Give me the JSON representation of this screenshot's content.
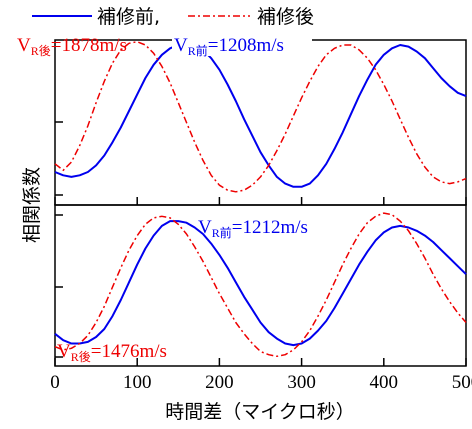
{
  "chart_data": {
    "type": "line",
    "xlabel": "時間差（マイクロ秒）",
    "ylabel": "相関係数",
    "xlim": [
      0,
      500
    ],
    "x_ticks": [
      "0",
      "100",
      "200",
      "300",
      "400",
      "500"
    ],
    "legend": {
      "placement": "top",
      "entries": [
        {
          "name": "補修前,",
          "color": "#0000ee",
          "dash": "solid"
        },
        {
          "name": "補修後",
          "color": "#ee0000",
          "dash": "dashdot"
        }
      ]
    },
    "panels": [
      {
        "annotations": [
          {
            "prefix": "V",
            "sub": "R後",
            "value": "=1878m/s",
            "color": "#ee0000"
          },
          {
            "prefix": "V",
            "sub": "R前",
            "value": "=1208m/s",
            "color": "#0000ee"
          }
        ],
        "ylim": [
          0,
          1
        ],
        "series": [
          {
            "name": "補修前,",
            "color": "#0000ee",
            "dash": "solid",
            "x": [
              0,
              10,
              20,
              30,
              40,
              50,
              60,
              70,
              80,
              90,
              100,
              110,
              120,
              130,
              140,
              150,
              160,
              170,
              180,
              190,
              200,
              210,
              220,
              230,
              240,
              250,
              260,
              270,
              280,
              290,
              300,
              310,
              320,
              330,
              340,
              350,
              360,
              370,
              380,
              390,
              400,
              410,
              420,
              430,
              440,
              450,
              460,
              470,
              480,
              490,
              500
            ],
            "y": [
              0.2,
              0.18,
              0.17,
              0.18,
              0.2,
              0.24,
              0.3,
              0.38,
              0.47,
              0.57,
              0.67,
              0.77,
              0.85,
              0.91,
              0.95,
              0.97,
              0.98,
              0.97,
              0.94,
              0.89,
              0.82,
              0.73,
              0.63,
              0.52,
              0.42,
              0.32,
              0.24,
              0.17,
              0.13,
              0.11,
              0.11,
              0.13,
              0.18,
              0.25,
              0.34,
              0.44,
              0.55,
              0.66,
              0.76,
              0.85,
              0.91,
              0.95,
              0.97,
              0.96,
              0.93,
              0.89,
              0.83,
              0.77,
              0.72,
              0.68,
              0.66
            ]
          },
          {
            "name": "補修後",
            "color": "#ee0000",
            "dash": "dashdot",
            "x": [
              0,
              10,
              20,
              30,
              40,
              50,
              60,
              70,
              80,
              90,
              100,
              110,
              120,
              130,
              140,
              150,
              160,
              170,
              180,
              190,
              200,
              210,
              220,
              230,
              240,
              250,
              260,
              270,
              280,
              290,
              300,
              310,
              320,
              330,
              340,
              350,
              360,
              370,
              380,
              390,
              400,
              410,
              420,
              430,
              440,
              450,
              460,
              470,
              480,
              490,
              500
            ],
            "y": [
              0.25,
              0.21,
              0.26,
              0.36,
              0.48,
              0.62,
              0.75,
              0.86,
              0.94,
              0.98,
              0.99,
              0.97,
              0.92,
              0.84,
              0.74,
              0.62,
              0.5,
              0.38,
              0.27,
              0.18,
              0.12,
              0.09,
              0.08,
              0.09,
              0.12,
              0.17,
              0.24,
              0.33,
              0.43,
              0.54,
              0.65,
              0.75,
              0.84,
              0.91,
              0.95,
              0.97,
              0.97,
              0.94,
              0.89,
              0.82,
              0.73,
              0.63,
              0.52,
              0.41,
              0.31,
              0.23,
              0.17,
              0.14,
              0.13,
              0.14,
              0.16
            ]
          }
        ]
      },
      {
        "annotations": [
          {
            "prefix": "V",
            "sub": "R前",
            "value": "=1212m/s",
            "color": "#0000ee"
          },
          {
            "prefix": "V",
            "sub": "R後",
            "value": "=1476m/s",
            "color": "#ee0000"
          }
        ],
        "ylim": [
          0,
          1
        ],
        "series": [
          {
            "name": "補修前,",
            "color": "#0000ee",
            "dash": "solid",
            "x": [
              0,
              10,
              20,
              30,
              40,
              50,
              60,
              70,
              80,
              90,
              100,
              110,
              120,
              130,
              140,
              150,
              160,
              170,
              180,
              190,
              200,
              210,
              220,
              230,
              240,
              250,
              260,
              270,
              280,
              290,
              300,
              310,
              320,
              330,
              340,
              350,
              360,
              370,
              380,
              390,
              400,
              410,
              420,
              430,
              440,
              450,
              460,
              470,
              480,
              490,
              500
            ],
            "y": [
              0.2,
              0.16,
              0.14,
              0.14,
              0.15,
              0.18,
              0.23,
              0.31,
              0.41,
              0.52,
              0.63,
              0.73,
              0.81,
              0.87,
              0.9,
              0.9,
              0.89,
              0.86,
              0.82,
              0.76,
              0.69,
              0.61,
              0.52,
              0.43,
              0.35,
              0.27,
              0.21,
              0.17,
              0.14,
              0.13,
              0.14,
              0.17,
              0.22,
              0.28,
              0.36,
              0.45,
              0.54,
              0.63,
              0.71,
              0.78,
              0.83,
              0.86,
              0.87,
              0.86,
              0.84,
              0.81,
              0.77,
              0.72,
              0.67,
              0.62,
              0.57
            ]
          },
          {
            "name": "補修後",
            "color": "#ee0000",
            "dash": "dashdot",
            "x": [
              0,
              10,
              20,
              30,
              40,
              50,
              60,
              70,
              80,
              90,
              100,
              110,
              120,
              130,
              140,
              150,
              160,
              170,
              180,
              190,
              200,
              210,
              220,
              230,
              240,
              250,
              260,
              270,
              280,
              290,
              300,
              310,
              320,
              330,
              340,
              350,
              360,
              370,
              380,
              390,
              400,
              410,
              420,
              430,
              440,
              450,
              460,
              470,
              480,
              490,
              500
            ],
            "y": [
              0.12,
              0.1,
              0.11,
              0.14,
              0.19,
              0.27,
              0.37,
              0.49,
              0.61,
              0.72,
              0.81,
              0.88,
              0.92,
              0.93,
              0.92,
              0.88,
              0.82,
              0.74,
              0.65,
              0.55,
              0.45,
              0.36,
              0.27,
              0.2,
              0.14,
              0.09,
              0.07,
              0.06,
              0.07,
              0.1,
              0.15,
              0.22,
              0.31,
              0.41,
              0.52,
              0.63,
              0.73,
              0.82,
              0.89,
              0.93,
              0.95,
              0.94,
              0.9,
              0.84,
              0.76,
              0.67,
              0.57,
              0.48,
              0.4,
              0.33,
              0.27
            ]
          }
        ]
      }
    ]
  }
}
